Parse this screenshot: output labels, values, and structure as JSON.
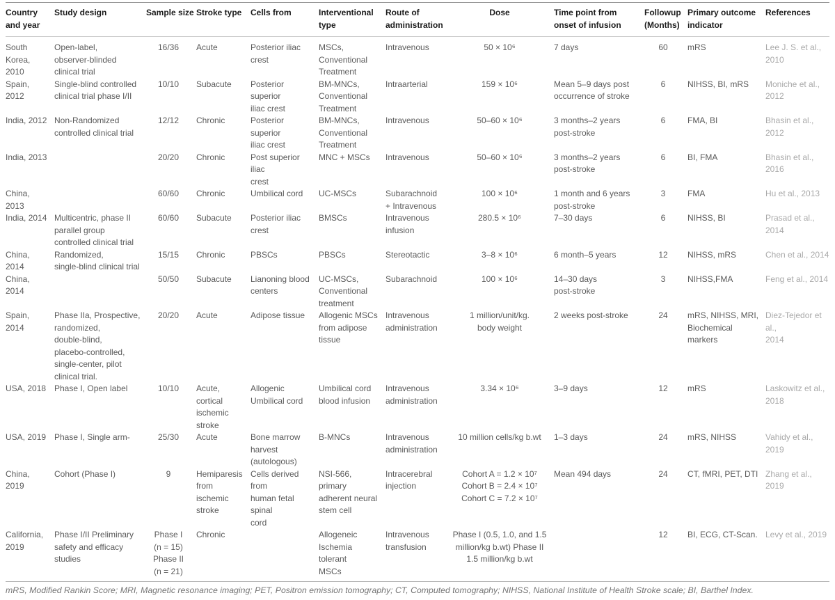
{
  "table": {
    "columns": [
      {
        "id": "country",
        "label": "Country and year",
        "align": "left"
      },
      {
        "id": "design",
        "label": "Study design",
        "align": "left"
      },
      {
        "id": "sample",
        "label": "Sample size",
        "align": "center",
        "nowrap_header": true
      },
      {
        "id": "stroke",
        "label": "Stroke type",
        "align": "left"
      },
      {
        "id": "cells",
        "label": "Cells from",
        "align": "left"
      },
      {
        "id": "intervention",
        "label": "Interventional type",
        "align": "left"
      },
      {
        "id": "route",
        "label": "Route of administration",
        "align": "left"
      },
      {
        "id": "dose",
        "label": "Dose",
        "align": "center"
      },
      {
        "id": "timepoint",
        "label": "Time point from onset of infusion",
        "align": "left"
      },
      {
        "id": "followup",
        "label": "Followup (Months)",
        "align": "center",
        "header_align": "left"
      },
      {
        "id": "outcome",
        "label": "Primary outcome indicator",
        "align": "left"
      },
      {
        "id": "reference",
        "label": "References",
        "align": "left",
        "muted": true
      }
    ],
    "rows": [
      {
        "country": "South Korea, 2010",
        "design": "Open-label,\nobserver-blinded\nclinical trial",
        "sample": "16/36",
        "stroke": "Acute",
        "cells": "Posterior iliac\ncrest",
        "intervention": "MSCs,\nConventional\nTreatment",
        "route": "Intravenous",
        "dose": "50 × 10⁶",
        "timepoint": "7 days",
        "followup": "60",
        "outcome": "mRS",
        "reference": "Lee J. S. et al.,\n2010"
      },
      {
        "country": "Spain, 2012",
        "design": "Single-blind controlled\nclinical trial phase I/II",
        "sample": "10/10",
        "stroke": "Subacute",
        "cells": "Posterior superior\niliac crest",
        "intervention": "BM-MNCs,\nConventional\nTreatment",
        "route": "Intraarterial",
        "dose": "159 × 10⁶",
        "timepoint": "Mean 5–9 days post\noccurrence of stroke",
        "followup": "6",
        "outcome": "NIHSS, BI, mRS",
        "reference": "Moniche et al.,\n2012"
      },
      {
        "country": "India, 2012",
        "design": "Non-Randomized\ncontrolled clinical trial",
        "sample": "12/12",
        "stroke": "Chronic",
        "cells": "Posterior superior\niliac crest",
        "intervention": "BM-MNCs,\nConventional\nTreatment",
        "route": "Intravenous",
        "dose": "50–60 × 10⁶",
        "timepoint": "3 months–2 years\npost-stroke",
        "followup": "6",
        "outcome": "FMA, BI",
        "reference": "Bhasin et al.,\n2012"
      },
      {
        "country": "India, 2013",
        "design": "",
        "sample": "20/20",
        "stroke": "Chronic",
        "cells": "Post superior iliac\ncrest",
        "intervention": "MNC + MSCs",
        "route": "Intravenous",
        "dose": "50–60 × 10⁶",
        "timepoint": "3 months–2 years\npost-stroke",
        "followup": "6",
        "outcome": "BI, FMA",
        "reference": "Bhasin et al.,\n2016"
      },
      {
        "country": "China, 2013",
        "design": "",
        "sample": "60/60",
        "stroke": "Chronic",
        "cells": "Umbilical cord",
        "intervention": "UC-MSCs",
        "route": "Subarachnoid\n+ Intravenous",
        "dose": "100 × 10⁶",
        "timepoint": "1 month and 6 years\npost-stroke",
        "followup": "3",
        "outcome": "FMA",
        "reference": "Hu et al., 2013"
      },
      {
        "country": "India, 2014",
        "design": "Multicentric, phase II\nparallel group\ncontrolled clinical trial",
        "sample": "60/60",
        "stroke": "Subacute",
        "cells": "Posterior iliac\ncrest",
        "intervention": "BMSCs",
        "route": "Intravenous\ninfusion",
        "dose": "280.5 × 10⁶",
        "timepoint": "7–30 days",
        "followup": "6",
        "outcome": "NIHSS, BI",
        "reference": "Prasad et al.,\n2014"
      },
      {
        "country": "China, 2014",
        "design": "Randomized,\nsingle-blind clinical trial",
        "sample": "15/15",
        "stroke": "Chronic",
        "cells": "PBSCs",
        "intervention": "PBSCs",
        "route": "Stereotactic",
        "dose": "3–8 × 10⁶",
        "timepoint": "6 month–5 years",
        "followup": "12",
        "outcome": "NIHSS, mRS",
        "reference": "Chen et al., 2014"
      },
      {
        "country": "China, 2014",
        "design": "",
        "sample": "50/50",
        "stroke": "Subacute",
        "cells": "Lianoning blood\ncenters",
        "intervention": "UC-MSCs,\nConventional\ntreatment",
        "route": "Subarachnoid",
        "dose": "100 × 10⁶",
        "timepoint": "14–30 days\npost-stroke",
        "followup": "3",
        "outcome": "NIHSS,FMA",
        "reference": "Feng et al., 2014"
      },
      {
        "country": "Spain, 2014",
        "design": "Phase IIa, Prospective,\nrandomized,\ndouble-blind,\nplacebo-controlled,\nsingle-center, pilot\nclinical trial.",
        "sample": "20/20",
        "stroke": "Acute",
        "cells": "Adipose tissue",
        "intervention": "Allogenic MSCs\nfrom adipose\ntissue",
        "route": "Intravenous\nadministration",
        "dose": "1 million/unit/kg.\nbody weight",
        "timepoint": "2 weeks post-stroke",
        "followup": "24",
        "outcome": "mRS, NIHSS, MRI,\nBiochemical markers",
        "reference": "Diez-Tejedor et al.,\n2014"
      },
      {
        "country": "USA, 2018",
        "design": "Phase I, Open label",
        "sample": "10/10",
        "stroke": "Acute,\ncortical\nischemic\nstroke",
        "cells": "Allogenic\nUmbilical cord",
        "intervention": "Umbilical cord\nblood infusion",
        "route": "Intravenous\nadministration",
        "dose": "3.34 × 10⁶",
        "timepoint": "3–9 days",
        "followup": "12",
        "outcome": "mRS",
        "reference": "Laskowitz et al.,\n2018"
      },
      {
        "country": "USA, 2019",
        "design": "Phase I, Single arm-",
        "sample": "25/30",
        "stroke": "Acute",
        "cells": "Bone marrow\nharvest\n(autologous)",
        "intervention": "B-MNCs",
        "route": "Intravenous\nadministration",
        "dose": "10 million cells/kg b.wt",
        "timepoint": "1–3 days",
        "followup": "24",
        "outcome": "mRS, NIHSS",
        "reference": "Vahidy et al., 2019"
      },
      {
        "country": "China, 2019",
        "design": "Cohort (Phase I)",
        "sample": "9",
        "stroke": "Hemiparesis\nfrom ischemic\nstroke",
        "cells": "Cells derived from\nhuman fetal spinal\ncord",
        "intervention": "NSI-566, primary\nadherent neural\nstem cell",
        "route": "Intracerebral\ninjection",
        "dose": "Cohort A = 1.2 × 10⁷\nCohort B = 2.4 × 10⁷\nCohort C = 7.2 × 10⁷",
        "timepoint": "Mean 494 days",
        "followup": "24",
        "outcome": "CT, fMRI, PET, DTI",
        "reference": "Zhang et al., 2019"
      },
      {
        "country": "California,\n2019",
        "design": "Phase I/II Preliminary\nsafety and efficacy\nstudies",
        "sample": "Phase I\n(n = 15)\nPhase II\n(n = 21)",
        "stroke": "Chronic",
        "cells": "",
        "intervention": "Allogeneic\nIschemia tolerant\nMSCs",
        "route": "Intravenous\ntransfusion",
        "dose": "Phase I (0.5, 1.0, and 1.5\nmillion/kg b.wt) Phase II\n1.5 million/kg b.wt",
        "timepoint": "",
        "followup": "12",
        "outcome": "BI, ECG, CT-Scan.",
        "reference": "Levy et al., 2019"
      }
    ]
  },
  "footnote": "mRS, Modified Rankin Score; MRI, Magnetic resonance imaging; PET, Positron emission tomography; CT, Computed tomography; NIHSS, National Institute of Health Stroke scale; BI, Barthel Index."
}
